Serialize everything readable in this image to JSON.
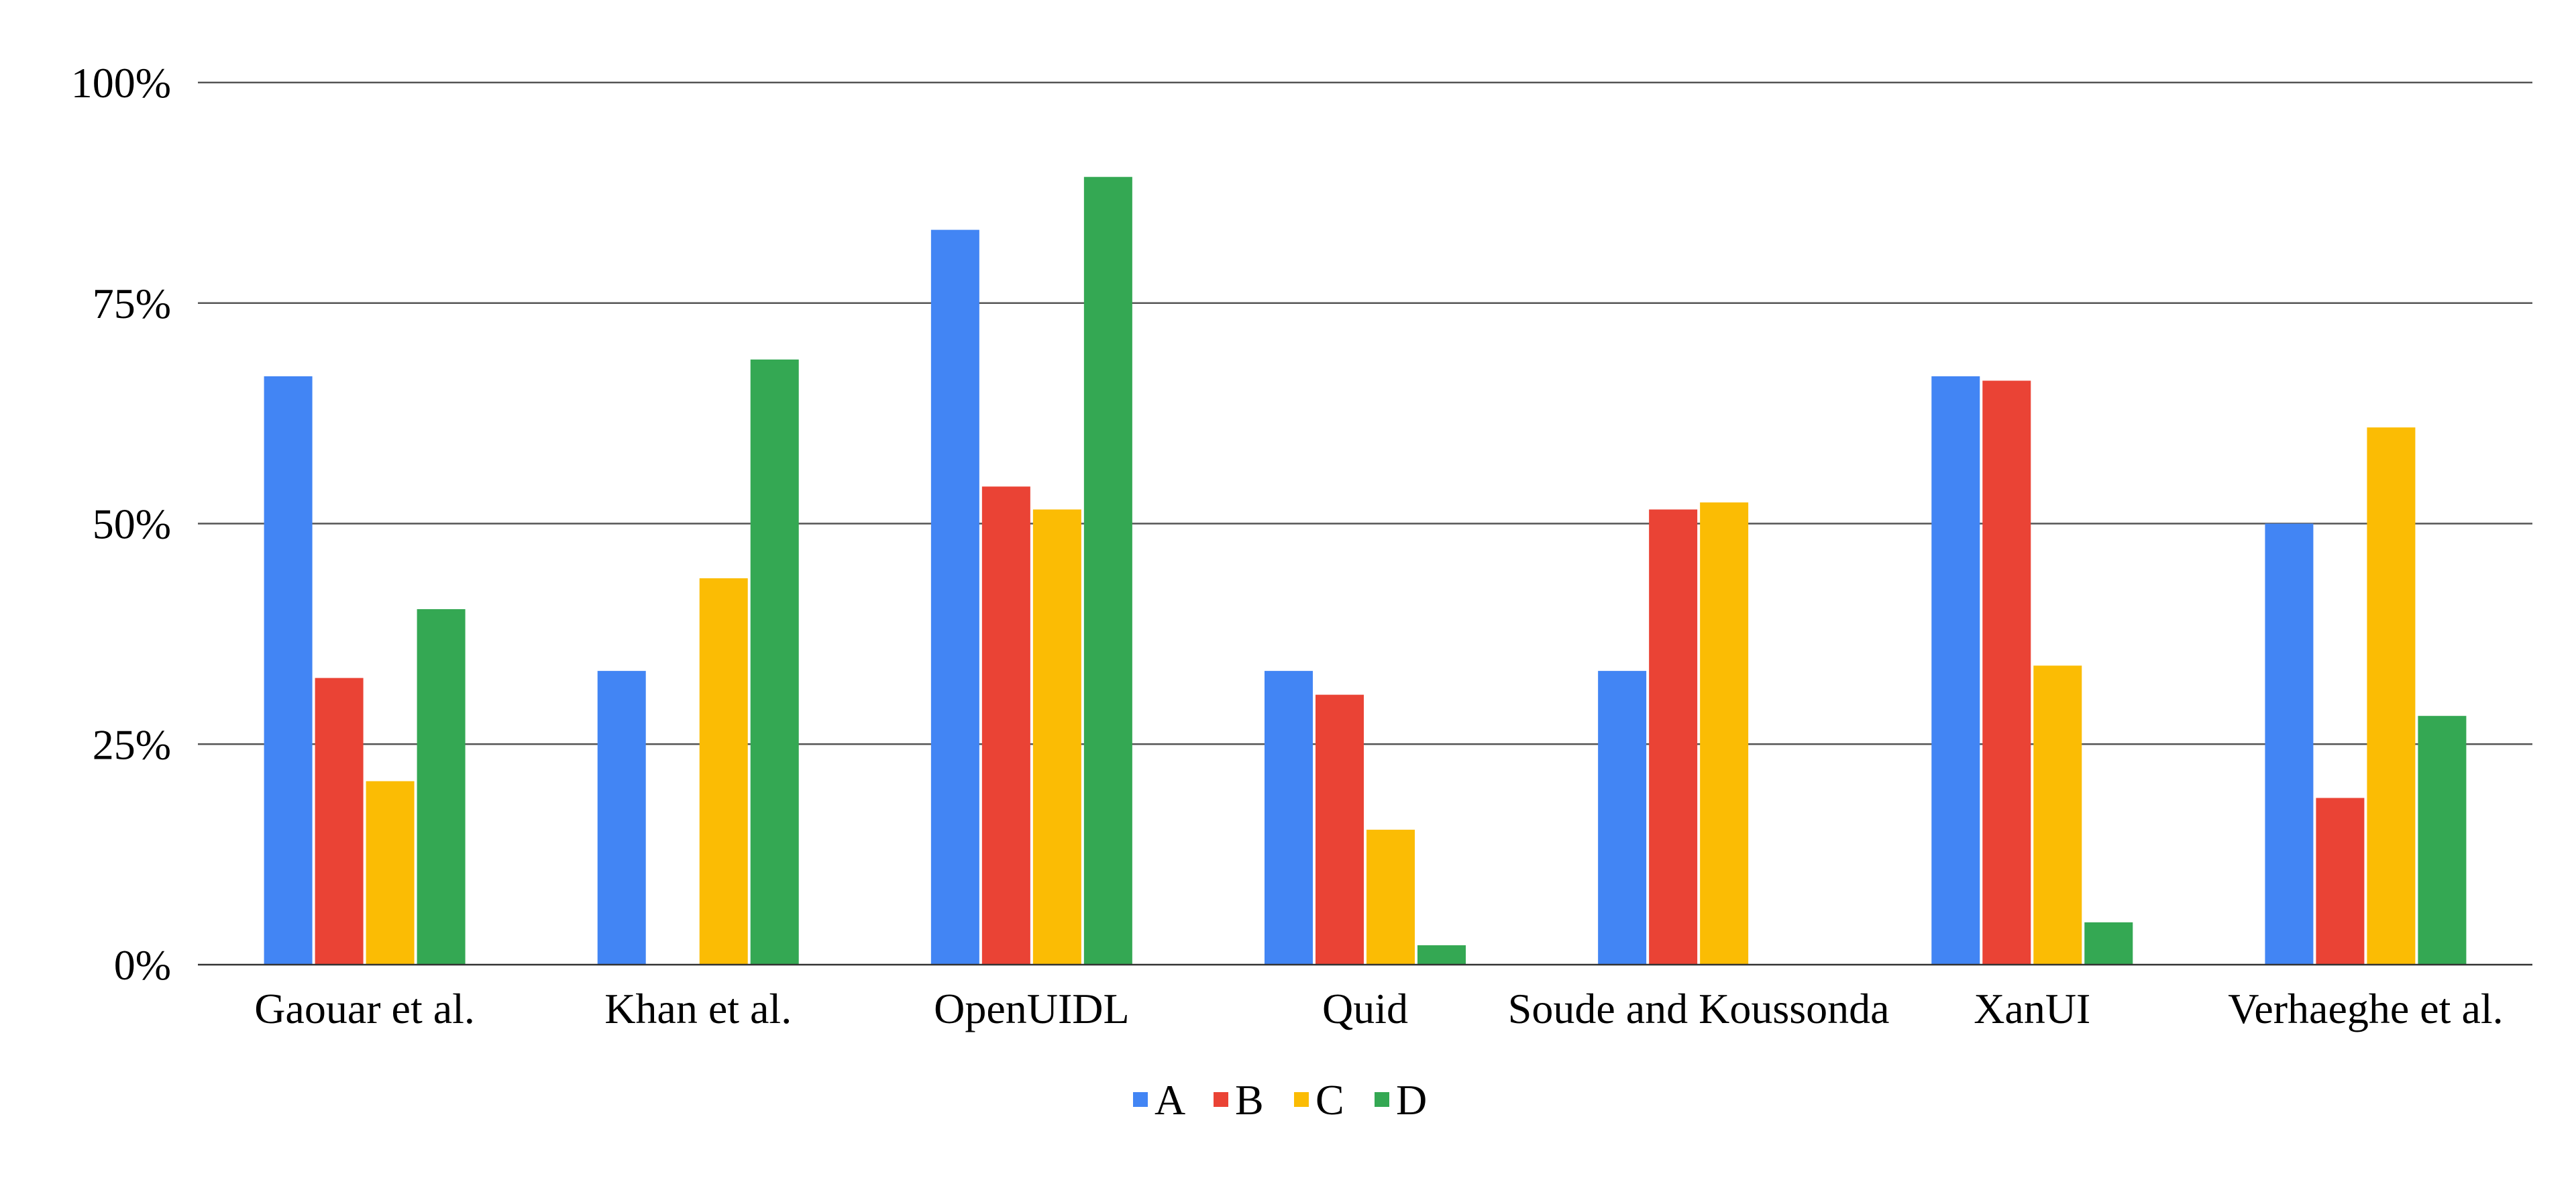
{
  "chart_data": {
    "type": "bar",
    "title": "",
    "xlabel": "",
    "ylabel": "",
    "ylim": [
      0,
      1
    ],
    "yticks": [
      "0%",
      "25%",
      "50%",
      "75%",
      "100%"
    ],
    "grid": true,
    "legend_position": "bottom",
    "categories": [
      "Gaouar et al.",
      "Khan et al.",
      "OpenUIDL",
      "Quid",
      "Soude and Koussonda",
      "XanUI",
      "Verhaeghe et al."
    ],
    "series": [
      {
        "name": "A",
        "color": "#4285F4",
        "values": [
          0.667,
          0.333,
          0.833,
          0.333,
          0.333,
          0.667,
          0.5
        ]
      },
      {
        "name": "B",
        "color": "#EA4335",
        "values": [
          0.325,
          0.0,
          0.542,
          0.306,
          0.516,
          0.662,
          0.189
        ]
      },
      {
        "name": "C",
        "color": "#FBBC04",
        "values": [
          0.208,
          0.438,
          0.516,
          0.153,
          0.524,
          0.339,
          0.609
        ]
      },
      {
        "name": "D",
        "color": "#34A853",
        "values": [
          0.403,
          0.686,
          0.893,
          0.022,
          0.0,
          0.048,
          0.282
        ]
      }
    ]
  }
}
